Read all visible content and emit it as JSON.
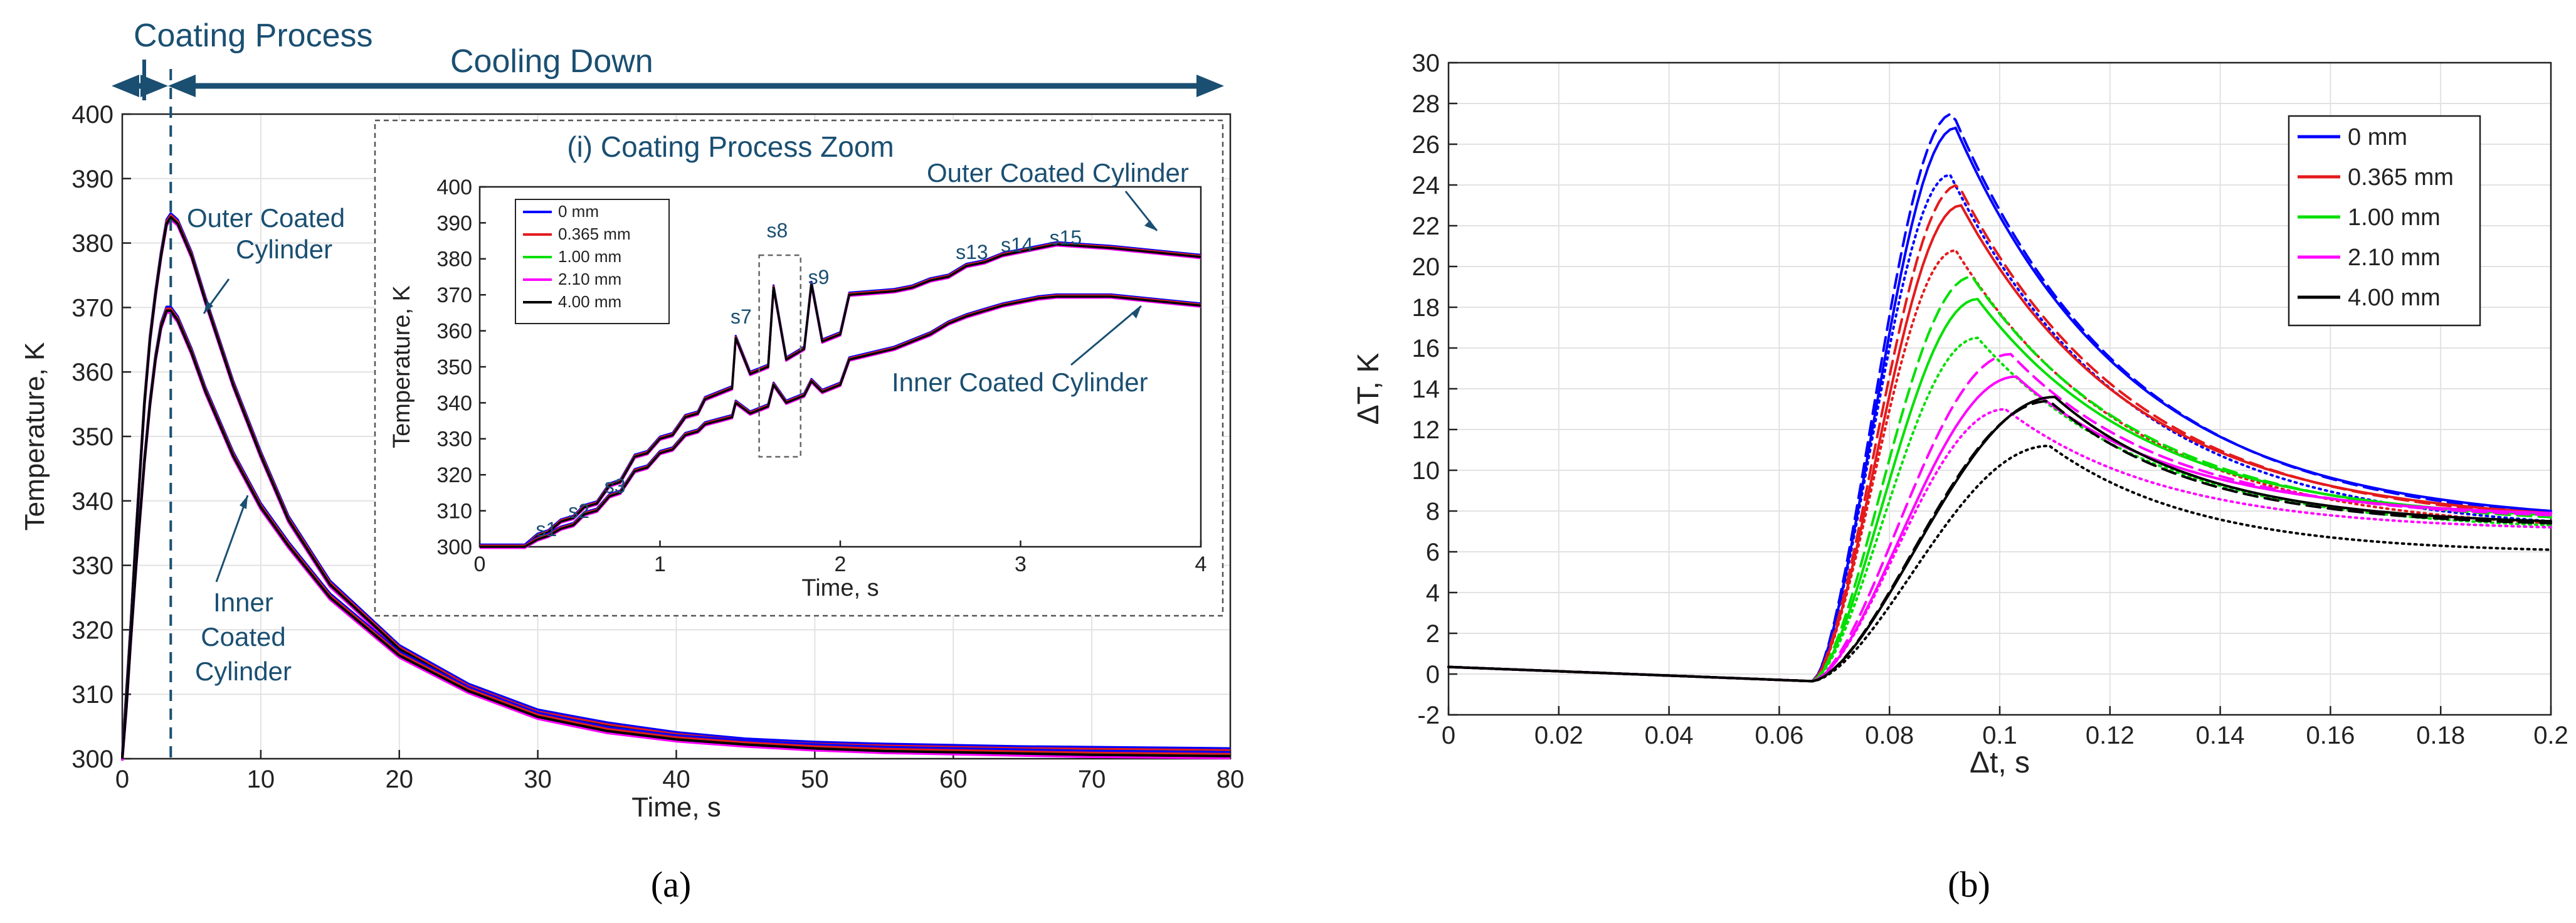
{
  "colors": {
    "s0": "#0000ff",
    "s1": "#e41a1c",
    "s2": "#00e000",
    "s3": "#ff00ff",
    "s4": "#000000",
    "annotation": "#1a4f72",
    "grid": "#e2e2e2"
  },
  "panels": {
    "a": {
      "label": "(a)"
    },
    "b": {
      "label": "(b)"
    }
  },
  "chart_data": [
    {
      "type": "line",
      "xlabel": "Time, s",
      "ylabel": "Temperature, K",
      "xlim": [
        0,
        80
      ],
      "ylim": [
        300,
        400
      ],
      "xticks": [
        0,
        10,
        20,
        30,
        40,
        50,
        60,
        70,
        80
      ],
      "yticks": [
        300,
        310,
        320,
        330,
        340,
        350,
        360,
        370,
        380,
        390,
        400
      ],
      "grid": true,
      "dashed_marker_x": 3.5,
      "annotations": {
        "coating_process": "Coating Process",
        "cooling_down": "Cooling Down",
        "outer_line1": "Outer Coated",
        "outer_line2": "Cylinder",
        "inner_line1": "Inner",
        "inner_line2": "Coated",
        "inner_line3": "Cylinder"
      },
      "series": [
        {
          "curve": "outer",
          "x": [
            0,
            0.3,
            0.6,
            1.0,
            1.3,
            1.6,
            2.0,
            2.4,
            2.8,
            3.2,
            3.5,
            4,
            5,
            6,
            8,
            10,
            12,
            15,
            20,
            25,
            30,
            35,
            40,
            45,
            50,
            55,
            60,
            65,
            70,
            75,
            80
          ],
          "y": [
            300,
            310,
            320,
            335,
            345,
            355,
            365,
            372,
            378,
            383,
            384,
            383,
            378,
            371,
            358,
            347,
            337,
            327,
            317,
            311,
            307,
            305,
            303.5,
            302.5,
            302,
            301.7,
            301.5,
            301.3,
            301.2,
            301.1,
            301
          ]
        },
        {
          "curve": "inner",
          "x": [
            0,
            0.3,
            0.6,
            1.0,
            1.3,
            1.6,
            2.0,
            2.4,
            2.8,
            3.2,
            3.5,
            4,
            5,
            6,
            8,
            10,
            12,
            15,
            20,
            25,
            30,
            35,
            40,
            45,
            50,
            55,
            60,
            65,
            70,
            75,
            80
          ],
          "y": [
            300,
            308,
            318,
            330,
            338,
            346,
            355,
            362,
            367,
            369.5,
            369.5,
            368,
            363,
            357,
            347,
            339,
            333,
            325,
            316,
            310.5,
            306.5,
            304.3,
            303,
            302.2,
            301.6,
            301.2,
            301,
            300.8,
            300.6,
            300.5,
            300.4
          ]
        }
      ]
    },
    {
      "type": "line",
      "title": "(i) Coating Process Zoom",
      "xlabel": "Time, s",
      "ylabel": "Temperature, K",
      "xlim": [
        0,
        4
      ],
      "ylim": [
        300,
        400
      ],
      "xticks": [
        0,
        1,
        2,
        3,
        4
      ],
      "yticks": [
        300,
        310,
        320,
        330,
        340,
        350,
        360,
        370,
        380,
        390,
        400
      ],
      "legend": [
        "0 mm",
        "0.365 mm",
        "1.00 mm",
        "2.10 mm",
        "4.00 mm"
      ],
      "step_labels": [
        {
          "text": "s1",
          "x": 0.37,
          "y": 303
        },
        {
          "text": "s2",
          "x": 0.55,
          "y": 308
        },
        {
          "text": "s3",
          "x": 0.75,
          "y": 315
        },
        {
          "text": "s7",
          "x": 1.45,
          "y": 362
        },
        {
          "text": "s8",
          "x": 1.65,
          "y": 386
        },
        {
          "text": "s9",
          "x": 1.88,
          "y": 373
        },
        {
          "text": "s13",
          "x": 2.73,
          "y": 380
        },
        {
          "text": "s14",
          "x": 2.98,
          "y": 382
        },
        {
          "text": "s15",
          "x": 3.25,
          "y": 384
        }
      ],
      "zoom_box": {
        "x": [
          1.55,
          1.78
        ],
        "y": [
          325,
          381
        ]
      },
      "annotations": {
        "outer": "Outer Coated Cylinder",
        "inner": "Inner Coated Cylinder"
      },
      "series": [
        {
          "curve": "outer",
          "x": [
            0,
            0.25,
            0.32,
            0.38,
            0.45,
            0.52,
            0.58,
            0.65,
            0.72,
            0.78,
            0.86,
            0.93,
            1.0,
            1.07,
            1.14,
            1.21,
            1.25,
            1.4,
            1.42,
            1.5,
            1.6,
            1.63,
            1.7,
            1.8,
            1.84,
            1.9,
            2.0,
            2.05,
            2.3,
            2.4,
            2.5,
            2.6,
            2.7,
            2.8,
            2.9,
            3.0,
            3.1,
            3.2,
            3.5,
            4.0
          ],
          "y": [
            300,
            300,
            303,
            304,
            307,
            308,
            311,
            312,
            317,
            318,
            325,
            326,
            330,
            331,
            336,
            337,
            341,
            344,
            358,
            348,
            350,
            372,
            352,
            355,
            373,
            357,
            359,
            370,
            371,
            372,
            374,
            375,
            378,
            379,
            381,
            382,
            383,
            384,
            383,
            380.5
          ]
        },
        {
          "curve": "inner",
          "x": [
            0,
            0.25,
            0.32,
            0.38,
            0.45,
            0.52,
            0.58,
            0.65,
            0.72,
            0.78,
            0.86,
            0.93,
            1.0,
            1.07,
            1.14,
            1.21,
            1.25,
            1.4,
            1.42,
            1.5,
            1.6,
            1.63,
            1.7,
            1.8,
            1.84,
            1.9,
            2.0,
            2.05,
            2.3,
            2.4,
            2.5,
            2.6,
            2.7,
            2.8,
            2.9,
            3.0,
            3.1,
            3.2,
            3.5,
            4.0
          ],
          "y": [
            300,
            300,
            302,
            303,
            305,
            306,
            309,
            310,
            314,
            315,
            321,
            322,
            326,
            327,
            331,
            332,
            334,
            336,
            340,
            337,
            339,
            345,
            340,
            342,
            346,
            343,
            345,
            352,
            355,
            357,
            359,
            362,
            364,
            365.5,
            367,
            368,
            369,
            369.5,
            369.5,
            367
          ]
        }
      ]
    },
    {
      "type": "line",
      "xlabel": "Δt, s",
      "ylabel": "ΔT, K",
      "xlim": [
        0,
        0.2
      ],
      "ylim": [
        -2,
        30
      ],
      "xticks": [
        0,
        0.02,
        0.04,
        0.06,
        0.08,
        0.1,
        0.12,
        0.14,
        0.16,
        0.18,
        0.2
      ],
      "yticks": [
        -2,
        0,
        2,
        4,
        6,
        8,
        10,
        12,
        14,
        16,
        18,
        20,
        22,
        24,
        26,
        28,
        30
      ],
      "legend": [
        "0 mm",
        "0.365 mm",
        "1.00 mm",
        "2.10 mm",
        "4.00 mm"
      ],
      "grid": true,
      "legend_position": "top-right",
      "series": [
        {
          "name": "0 mm",
          "style": "solid",
          "peak": [
            0.092,
            26.8
          ],
          "end": 8.0
        },
        {
          "name": "0 mm",
          "style": "dashed",
          "peak": [
            0.0915,
            27.5
          ],
          "end": 7.9
        },
        {
          "name": "0 mm",
          "style": "dotted",
          "peak": [
            0.091,
            24.5
          ],
          "end": 7.5
        },
        {
          "name": "0.365 mm",
          "style": "solid",
          "peak": [
            0.093,
            23.0
          ],
          "end": 7.9
        },
        {
          "name": "0.365 mm",
          "style": "dashed",
          "peak": [
            0.0925,
            24.0
          ],
          "end": 7.8
        },
        {
          "name": "0.365 mm",
          "style": "dotted",
          "peak": [
            0.092,
            20.8
          ],
          "end": 7.4
        },
        {
          "name": "1.00 mm",
          "style": "solid",
          "peak": [
            0.096,
            18.4
          ],
          "end": 7.8
        },
        {
          "name": "1.00 mm",
          "style": "dashed",
          "peak": [
            0.095,
            19.5
          ],
          "end": 7.7
        },
        {
          "name": "1.00 mm",
          "style": "dotted",
          "peak": [
            0.096,
            16.5
          ],
          "end": 7.3
        },
        {
          "name": "2.10 mm",
          "style": "solid",
          "peak": [
            0.103,
            14.6
          ],
          "end": 7.9
        },
        {
          "name": "2.10 mm",
          "style": "dashed",
          "peak": [
            0.102,
            15.7
          ],
          "end": 7.8
        },
        {
          "name": "2.10 mm",
          "style": "dotted",
          "peak": [
            0.101,
            13.0
          ],
          "end": 7.2
        },
        {
          "name": "4.00 mm",
          "style": "solid",
          "peak": [
            0.11,
            13.6
          ],
          "end": 7.5
        },
        {
          "name": "4.00 mm",
          "style": "dashed",
          "peak": [
            0.109,
            13.4
          ],
          "end": 7.4
        },
        {
          "name": "4.00 mm",
          "style": "dotted",
          "peak": [
            0.109,
            11.2
          ],
          "end": 6.1
        }
      ]
    }
  ]
}
